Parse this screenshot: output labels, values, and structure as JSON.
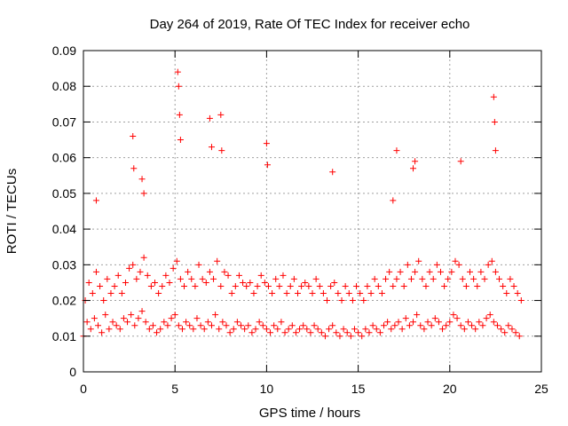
{
  "chart_data": {
    "type": "scatter",
    "title": "Day 264 of 2019, Rate Of TEC Index for receiver echo",
    "xlabel": "GPS time / hours",
    "ylabel": "ROTI / TECUs",
    "xlim": [
      0,
      25
    ],
    "ylim": [
      0,
      0.09
    ],
    "xticks": [
      0,
      5,
      10,
      15,
      20,
      25
    ],
    "xtick_labels": [
      "0",
      "5",
      "10",
      "15",
      "20",
      "25"
    ],
    "yticks": [
      0,
      0.01,
      0.02,
      0.03,
      0.04,
      0.05,
      0.06,
      0.07,
      0.08,
      0.09
    ],
    "ytick_labels": [
      "0",
      "0.01",
      "0.02",
      "0.03",
      "0.04",
      "0.05",
      "0.06",
      "0.07",
      "0.08",
      "0.09"
    ],
    "grid": true,
    "marker": "+",
    "color": "#ff0000",
    "series": [
      {
        "name": "ROTI",
        "x": [
          0.0,
          0.2,
          0.4,
          0.6,
          0.8,
          1.0,
          1.2,
          1.4,
          1.6,
          1.8,
          2.0,
          2.2,
          2.4,
          2.6,
          2.8,
          3.0,
          3.2,
          3.4,
          3.6,
          3.8,
          4.0,
          4.2,
          4.4,
          4.6,
          4.8,
          5.0,
          5.2,
          5.4,
          5.6,
          5.8,
          6.0,
          6.2,
          6.4,
          6.6,
          6.8,
          7.0,
          7.2,
          7.4,
          7.6,
          7.8,
          8.0,
          8.2,
          8.4,
          8.6,
          8.8,
          9.0,
          9.2,
          9.4,
          9.6,
          9.8,
          10.0,
          10.2,
          10.4,
          10.6,
          10.8,
          11.0,
          11.2,
          11.4,
          11.6,
          11.8,
          12.0,
          12.2,
          12.4,
          12.6,
          12.8,
          13.0,
          13.2,
          13.4,
          13.6,
          13.8,
          14.0,
          14.2,
          14.4,
          14.6,
          14.8,
          15.0,
          15.2,
          15.4,
          15.6,
          15.8,
          16.0,
          16.2,
          16.4,
          16.6,
          16.8,
          17.0,
          17.2,
          17.4,
          17.6,
          17.8,
          18.0,
          18.2,
          18.4,
          18.6,
          18.8,
          19.0,
          19.2,
          19.4,
          19.6,
          19.8,
          20.0,
          20.2,
          20.4,
          20.6,
          20.8,
          21.0,
          21.2,
          21.4,
          21.6,
          21.8,
          22.0,
          22.2,
          22.4,
          22.6,
          22.8,
          23.0,
          23.2,
          23.4,
          23.6,
          23.8,
          0.1,
          0.3,
          0.5,
          0.7,
          0.9,
          1.1,
          1.3,
          1.5,
          1.7,
          1.9,
          2.1,
          2.3,
          2.5,
          2.7,
          2.9,
          3.1,
          3.3,
          3.5,
          3.7,
          3.9,
          4.1,
          4.3,
          4.5,
          4.7,
          4.9,
          5.1,
          5.3,
          5.5,
          5.7,
          5.9,
          6.1,
          6.3,
          6.5,
          6.7,
          6.9,
          7.1,
          7.3,
          7.5,
          7.7,
          7.9,
          8.1,
          8.3,
          8.5,
          8.7,
          8.9,
          9.1,
          9.3,
          9.5,
          9.7,
          9.9,
          10.1,
          10.3,
          10.5,
          10.7,
          10.9,
          11.1,
          11.3,
          11.5,
          11.7,
          11.9,
          12.1,
          12.3,
          12.5,
          12.7,
          12.9,
          13.1,
          13.3,
          13.5,
          13.7,
          13.9,
          14.1,
          14.3,
          14.5,
          14.7,
          14.9,
          15.1,
          15.3,
          15.5,
          15.7,
          15.9,
          16.1,
          16.3,
          16.5,
          16.7,
          16.9,
          17.1,
          17.3,
          17.5,
          17.7,
          17.9,
          18.1,
          18.3,
          18.5,
          18.7,
          18.9,
          19.1,
          19.3,
          19.5,
          19.7,
          19.9,
          20.1,
          20.3,
          20.5,
          20.7,
          20.9,
          21.1,
          21.3,
          21.5,
          21.7,
          21.9,
          22.1,
          22.3,
          22.5,
          22.7,
          22.9,
          23.1,
          23.3,
          23.5,
          23.7,
          23.9,
          0.7,
          2.7,
          2.75,
          3.2,
          3.3,
          5.15,
          5.2,
          5.25,
          5.3,
          6.9,
          7.0,
          7.5,
          7.55,
          10.0,
          10.05,
          13.6,
          16.9,
          17.1,
          18.0,
          18.1,
          20.6,
          22.4,
          22.45,
          22.5
        ],
        "y": [
          0.01,
          0.014,
          0.012,
          0.015,
          0.013,
          0.011,
          0.016,
          0.012,
          0.014,
          0.013,
          0.012,
          0.015,
          0.014,
          0.016,
          0.013,
          0.015,
          0.017,
          0.014,
          0.012,
          0.013,
          0.011,
          0.012,
          0.014,
          0.013,
          0.015,
          0.016,
          0.013,
          0.012,
          0.014,
          0.013,
          0.012,
          0.015,
          0.013,
          0.012,
          0.014,
          0.013,
          0.016,
          0.012,
          0.014,
          0.013,
          0.011,
          0.012,
          0.014,
          0.013,
          0.012,
          0.013,
          0.011,
          0.012,
          0.014,
          0.013,
          0.012,
          0.011,
          0.013,
          0.012,
          0.014,
          0.011,
          0.012,
          0.013,
          0.011,
          0.012,
          0.013,
          0.012,
          0.011,
          0.013,
          0.012,
          0.011,
          0.01,
          0.012,
          0.013,
          0.011,
          0.01,
          0.012,
          0.011,
          0.01,
          0.012,
          0.011,
          0.01,
          0.012,
          0.011,
          0.013,
          0.012,
          0.011,
          0.013,
          0.014,
          0.012,
          0.013,
          0.014,
          0.012,
          0.015,
          0.013,
          0.014,
          0.016,
          0.013,
          0.012,
          0.014,
          0.013,
          0.015,
          0.014,
          0.012,
          0.013,
          0.014,
          0.016,
          0.015,
          0.013,
          0.012,
          0.014,
          0.013,
          0.012,
          0.014,
          0.013,
          0.015,
          0.016,
          0.014,
          0.013,
          0.012,
          0.011,
          0.013,
          0.012,
          0.011,
          0.01,
          0.02,
          0.025,
          0.022,
          0.028,
          0.024,
          0.02,
          0.026,
          0.022,
          0.024,
          0.027,
          0.022,
          0.025,
          0.029,
          0.03,
          0.026,
          0.028,
          0.032,
          0.027,
          0.024,
          0.025,
          0.022,
          0.024,
          0.027,
          0.025,
          0.029,
          0.031,
          0.026,
          0.024,
          0.028,
          0.026,
          0.024,
          0.03,
          0.026,
          0.025,
          0.028,
          0.026,
          0.031,
          0.024,
          0.028,
          0.027,
          0.022,
          0.024,
          0.027,
          0.025,
          0.024,
          0.025,
          0.022,
          0.024,
          0.027,
          0.025,
          0.024,
          0.022,
          0.026,
          0.024,
          0.027,
          0.022,
          0.024,
          0.026,
          0.022,
          0.024,
          0.025,
          0.024,
          0.022,
          0.026,
          0.024,
          0.022,
          0.02,
          0.024,
          0.025,
          0.022,
          0.02,
          0.024,
          0.022,
          0.02,
          0.024,
          0.022,
          0.02,
          0.024,
          0.022,
          0.026,
          0.024,
          0.022,
          0.026,
          0.028,
          0.024,
          0.026,
          0.028,
          0.024,
          0.03,
          0.026,
          0.028,
          0.031,
          0.026,
          0.024,
          0.028,
          0.026,
          0.03,
          0.028,
          0.024,
          0.026,
          0.028,
          0.031,
          0.03,
          0.026,
          0.024,
          0.028,
          0.026,
          0.024,
          0.028,
          0.026,
          0.03,
          0.031,
          0.028,
          0.026,
          0.024,
          0.022,
          0.026,
          0.024,
          0.022,
          0.02,
          0.048,
          0.066,
          0.057,
          0.054,
          0.05,
          0.084,
          0.08,
          0.072,
          0.065,
          0.071,
          0.063,
          0.072,
          0.062,
          0.064,
          0.058,
          0.056,
          0.048,
          0.062,
          0.057,
          0.059,
          0.059,
          0.077,
          0.07,
          0.062
        ]
      }
    ]
  }
}
